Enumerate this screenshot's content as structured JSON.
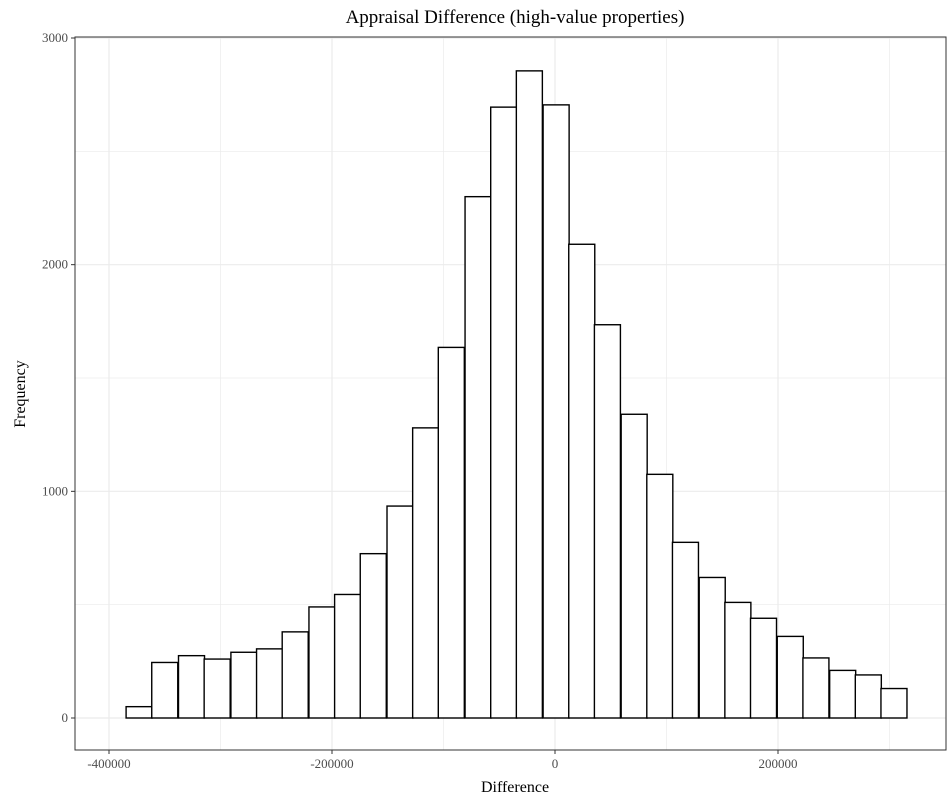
{
  "chart_data": {
    "type": "bar",
    "title": "Appraisal Difference (high-value properties)",
    "xlabel": "Difference",
    "ylabel": "Frequency",
    "xlim": [
      -400000,
      320000
    ],
    "ylim": [
      0,
      3000
    ],
    "bin_width": 23333,
    "x_ticks": [
      {
        "value": -400000,
        "label": "-400000"
      },
      {
        "value": -200000,
        "label": "-200000"
      },
      {
        "value": 0,
        "label": "0"
      },
      {
        "value": 200000,
        "label": "200000"
      }
    ],
    "y_ticks": [
      {
        "value": 0,
        "label": "0"
      },
      {
        "value": 1000,
        "label": "1000"
      },
      {
        "value": 2000,
        "label": "2000"
      },
      {
        "value": 3000,
        "label": "3000"
      }
    ],
    "grid": true,
    "bins": [
      {
        "x": -373000,
        "count": 50
      },
      {
        "x": -350000,
        "count": 245
      },
      {
        "x": -326000,
        "count": 275
      },
      {
        "x": -303000,
        "count": 260
      },
      {
        "x": -279000,
        "count": 290
      },
      {
        "x": -256000,
        "count": 305
      },
      {
        "x": -233000,
        "count": 380
      },
      {
        "x": -209000,
        "count": 490
      },
      {
        "x": -186000,
        "count": 545
      },
      {
        "x": -163000,
        "count": 725
      },
      {
        "x": -139000,
        "count": 935
      },
      {
        "x": -116000,
        "count": 1280
      },
      {
        "x": -93000,
        "count": 1635
      },
      {
        "x": -69000,
        "count": 2300
      },
      {
        "x": -46000,
        "count": 2695
      },
      {
        "x": -23000,
        "count": 2855
      },
      {
        "x": 1000,
        "count": 2705
      },
      {
        "x": 24000,
        "count": 2090
      },
      {
        "x": 47000,
        "count": 1735
      },
      {
        "x": 71000,
        "count": 1340
      },
      {
        "x": 94000,
        "count": 1075
      },
      {
        "x": 117000,
        "count": 775
      },
      {
        "x": 141000,
        "count": 620
      },
      {
        "x": 164000,
        "count": 510
      },
      {
        "x": 187000,
        "count": 440
      },
      {
        "x": 211000,
        "count": 360
      },
      {
        "x": 234000,
        "count": 265
      },
      {
        "x": 258000,
        "count": 210
      },
      {
        "x": 281000,
        "count": 190
      },
      {
        "x": 304000,
        "count": 130
      }
    ],
    "colors": {
      "bar_fill": "#ffffff",
      "bar_stroke": "#000000",
      "grid": "#ebebeb",
      "panel_border": "#333333"
    }
  }
}
